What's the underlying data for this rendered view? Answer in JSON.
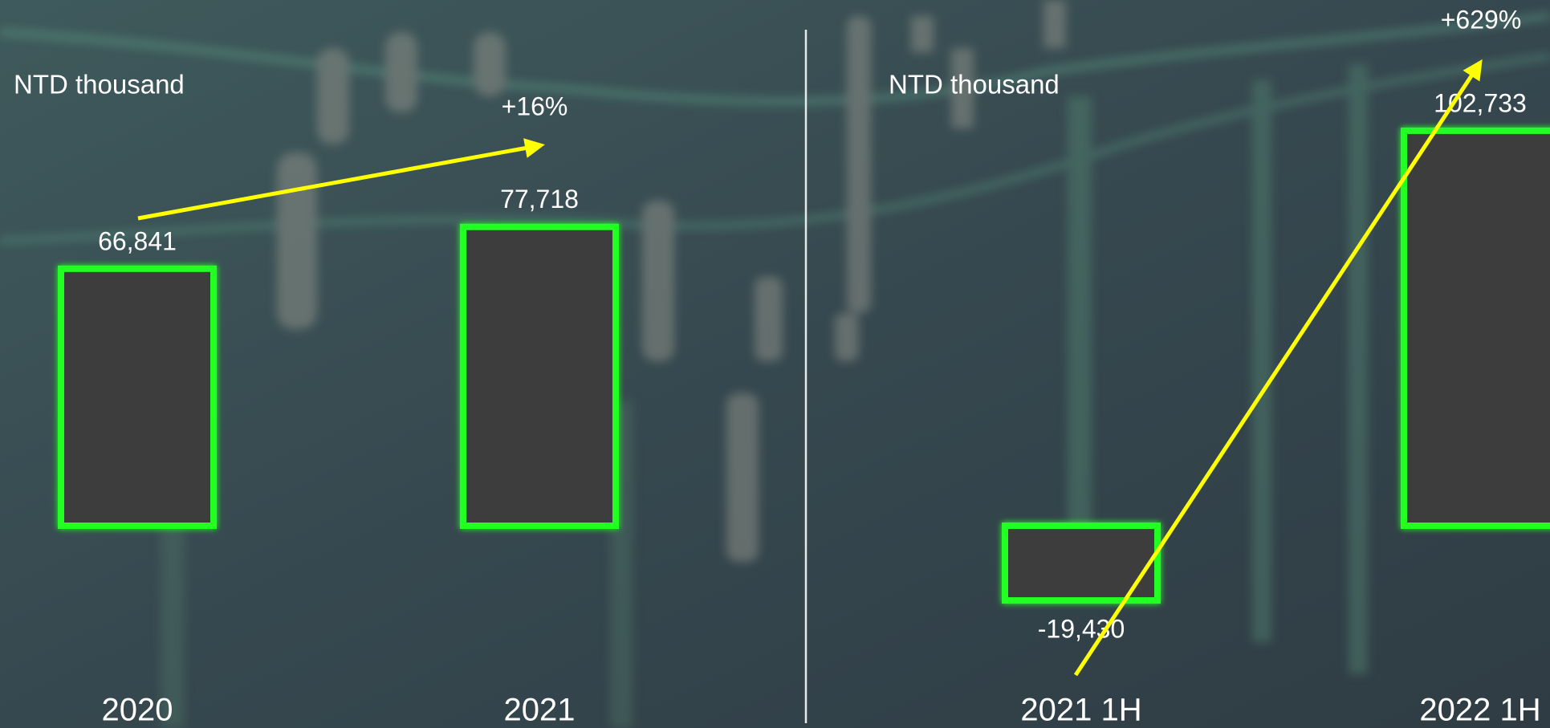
{
  "chart_data": [
    {
      "type": "bar",
      "unit_label": "NTD thousand",
      "annotation": "+16%",
      "categories": [
        "2020",
        "2021"
      ],
      "values": [
        66841,
        77718
      ],
      "value_labels": [
        "66,841",
        "77,718"
      ],
      "color": "#3d3d3d",
      "edge_color": "#22ff22",
      "arrow_color": "#ffff00"
    },
    {
      "type": "bar",
      "unit_label": "NTD thousand",
      "annotation": "+629%",
      "categories": [
        "2021 1H",
        "2022 1H"
      ],
      "values": [
        -19430,
        102733
      ],
      "value_labels": [
        "-19,430",
        "102,733"
      ],
      "color": "#3d3d3d",
      "edge_color": "#22ff22",
      "arrow_color": "#ffff00"
    }
  ]
}
